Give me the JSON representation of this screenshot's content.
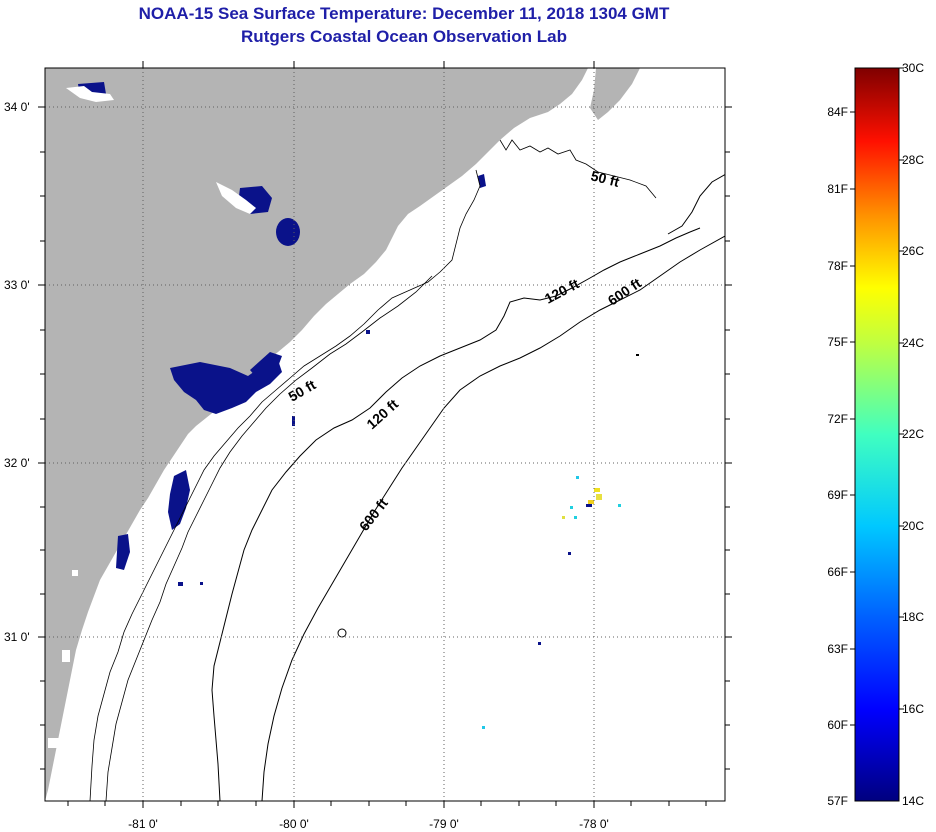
{
  "title": {
    "line1": "NOAA-15 Sea Surface Temperature:  December 11, 2018 1304 GMT",
    "line2": "Rutgers Coastal Ocean Observation Lab"
  },
  "map": {
    "lat_labels": [
      "34 0'",
      "33 0'",
      "32 0'",
      "31 0'"
    ],
    "lon_labels": [
      "-81 0'",
      "-80 0'",
      "-79 0'",
      "-78 0'"
    ],
    "contours": {
      "c50_a": "50 ft",
      "c50_b": "50 ft",
      "c120_a": "120 ft",
      "c120_b": "120 ft",
      "c600_a": "600 ft",
      "c600_b": "600 ft"
    },
    "colors": {
      "land": "#b4b4b4",
      "ocean": "#ffffff",
      "cold_pixel": "#0a128a"
    }
  },
  "colorbar": {
    "fahrenheit": [
      "84F",
      "81F",
      "78F",
      "75F",
      "72F",
      "69F",
      "66F",
      "63F",
      "60F",
      "57F"
    ],
    "celsius": [
      "30C",
      "28C",
      "26C",
      "24C",
      "22C",
      "20C",
      "18C",
      "16C",
      "14C"
    ],
    "range_c": [
      14,
      30
    ],
    "gradient": [
      "#00007f",
      "#0000ff",
      "#0080ff",
      "#00ffff",
      "#80ff80",
      "#ffff00",
      "#ff8000",
      "#ff0000",
      "#7f0000"
    ]
  }
}
